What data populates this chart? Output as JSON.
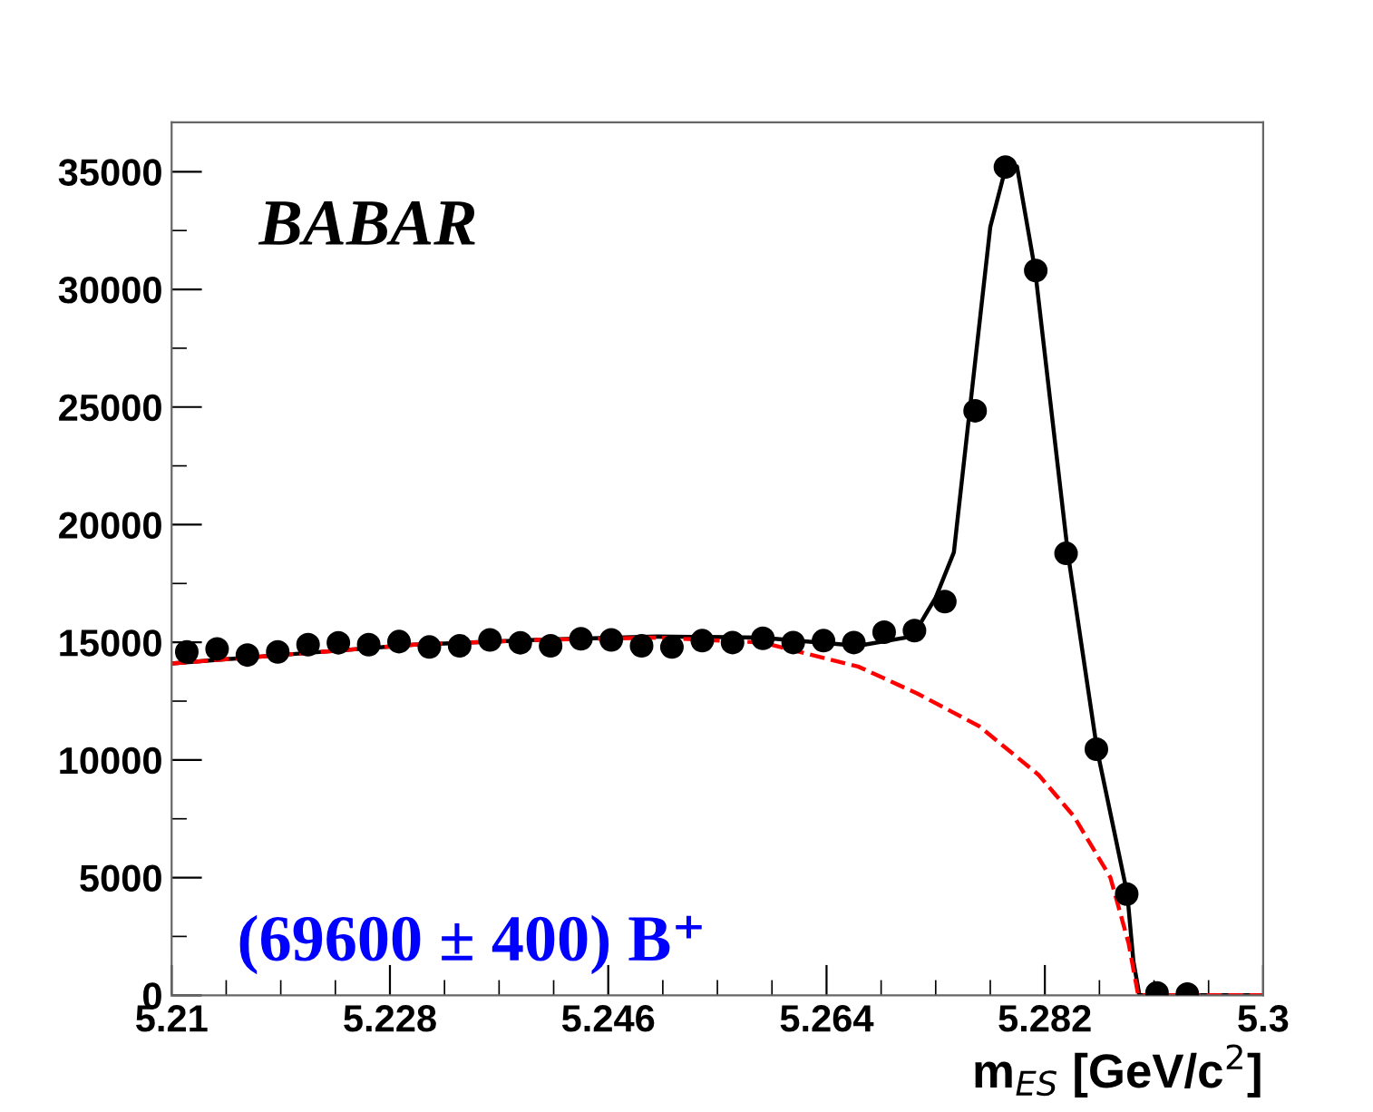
{
  "chart_data": {
    "type": "scatter",
    "xlabel": "m$_{ES}$ [GeV/c$^{2}$]",
    "xlim": [
      5.21,
      5.3
    ],
    "xticks": [
      5.21,
      5.228,
      5.246,
      5.264,
      5.282,
      5.3
    ],
    "ylim": [
      0,
      37100
    ],
    "yticks": [
      0,
      5000,
      10000,
      15000,
      20000,
      25000,
      30000,
      35000
    ],
    "grid": false,
    "legend": false,
    "annotations": [
      "BABAR",
      "(69600 ± 400) B⁺"
    ],
    "series": [
      {
        "color": "#000000",
        "marker": "circle",
        "x": [
          5.21125,
          5.21375,
          5.21625,
          5.21875,
          5.22125,
          5.22375,
          5.22625,
          5.22875,
          5.23125,
          5.23375,
          5.23625,
          5.23875,
          5.24125,
          5.24375,
          5.24625,
          5.24875,
          5.25125,
          5.25375,
          5.25625,
          5.25875,
          5.26125,
          5.26375,
          5.26625,
          5.26875,
          5.27125,
          5.27375,
          5.27625,
          5.27875,
          5.28125,
          5.28375,
          5.28625,
          5.28875,
          5.29125,
          5.29375
        ],
        "values": [
          14590,
          14720,
          14460,
          14590,
          14900,
          14980,
          14900,
          15030,
          14800,
          14850,
          15100,
          14980,
          14850,
          15150,
          15100,
          14850,
          14800,
          15070,
          14990,
          15170,
          14990,
          15070,
          14990,
          15430,
          15500,
          16730,
          24840,
          35200,
          30800,
          18780,
          10460,
          4300,
          100,
          50
        ]
      },
      {
        "type": "line",
        "color": "#ff0000",
        "line_style": "dashed",
        "x": [
          5.21,
          5.22,
          5.23,
          5.24,
          5.25,
          5.2587,
          5.2666,
          5.2715,
          5.2766,
          5.2815,
          5.2844,
          5.2874,
          5.2889,
          5.2897,
          5.3
        ],
        "values": [
          14100,
          14500,
          14900,
          15100,
          15200,
          14990,
          13970,
          12820,
          11430,
          9360,
          7600,
          5010,
          2220,
          0,
          0
        ]
      },
      {
        "type": "line",
        "color": "#000000",
        "line_style": "solid",
        "x": [
          5.21,
          5.22,
          5.23,
          5.24,
          5.25,
          5.2586,
          5.2666,
          5.2711,
          5.273,
          5.2745,
          5.2758,
          5.2775,
          5.2788,
          5.2797,
          5.2812,
          5.2839,
          5.2863,
          5.2888,
          5.2893,
          5.2898,
          5.3
        ],
        "values": [
          14100,
          14500,
          14900,
          15100,
          15250,
          15200,
          14850,
          15250,
          16900,
          18830,
          24840,
          32650,
          35230,
          35230,
          30800,
          18780,
          10460,
          4300,
          1450,
          0,
          0
        ]
      }
    ]
  }
}
